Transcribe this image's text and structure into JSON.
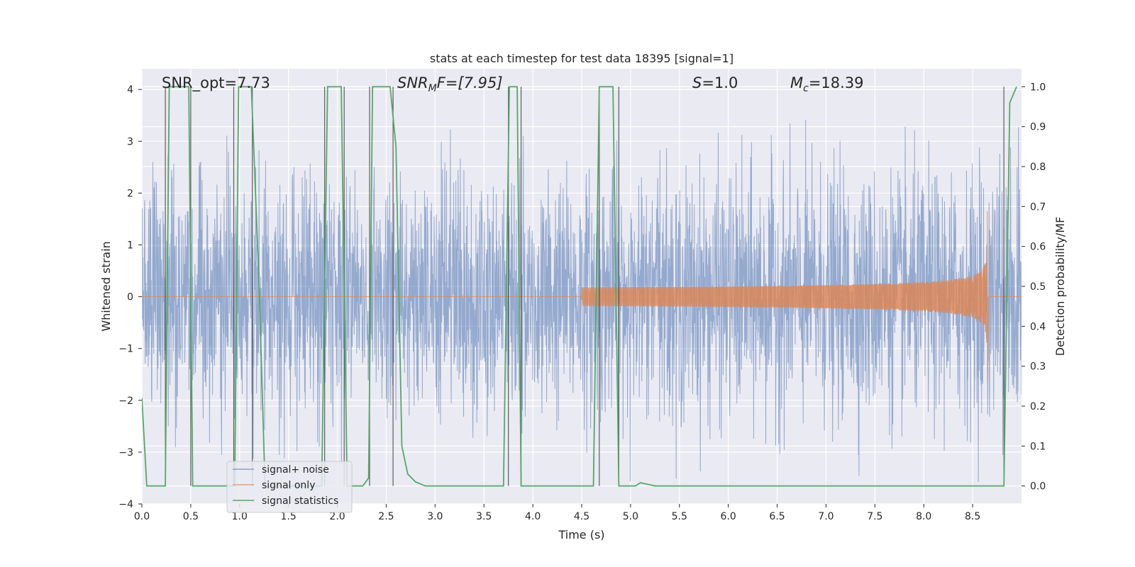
{
  "chart_data": {
    "type": "line",
    "title": "stats at each timestep for test data 18395 [signal=1]",
    "xlabel": "Time (s)",
    "ylabel": "Whitened strain",
    "y2label": "Detection probability/MF",
    "xlim": [
      0,
      9.0
    ],
    "ylim": [
      -4,
      4.4
    ],
    "y2lim": [
      -0.045,
      1.045
    ],
    "x_ticks": [
      "0.0",
      "0.5",
      "1.0",
      "1.5",
      "2.0",
      "2.5",
      "3.0",
      "3.5",
      "4.0",
      "4.5",
      "5.0",
      "5.5",
      "6.0",
      "6.5",
      "7.0",
      "7.5",
      "8.0",
      "8.5"
    ],
    "y_ticks": [
      "4",
      "3",
      "2",
      "1",
      "0",
      "−1",
      "−2",
      "−3",
      "−4"
    ],
    "y2_ticks": [
      "1.0",
      "0.9",
      "0.8",
      "0.7",
      "0.6",
      "0.5",
      "0.4",
      "0.3",
      "0.2",
      "0.1",
      "0.0"
    ],
    "annotations": {
      "snr_opt": "SNR_opt=7.73",
      "snr_mf_base": "SNR",
      "snr_mf_sub": "M",
      "snr_mf_rest": "F=[7.95]",
      "s_italic": "S",
      "s_rest": "=1.0",
      "mc_base": "M",
      "mc_sub": "c",
      "mc_rest": "=18.39"
    },
    "legend": {
      "position": "lower-left",
      "entries": [
        "signal+ noise",
        "signal only",
        "signal statistics"
      ]
    },
    "series": [
      {
        "name": "signal+ noise",
        "color": "#4c72b0",
        "kind": "noise",
        "typical_range": [
          -2.2,
          2.2
        ],
        "extreme_range": [
          -3.6,
          3.6
        ]
      },
      {
        "name": "signal only",
        "color": "#dd8452",
        "kind": "chirp",
        "start_time": 4.5,
        "merger_time": 8.65,
        "peak_amplitude": 1.65
      },
      {
        "name": "signal statistics",
        "color": "#55a868",
        "axis": "right",
        "points": [
          [
            0.0,
            0.22
          ],
          [
            0.05,
            0.0
          ],
          [
            0.24,
            0.0
          ],
          [
            0.28,
            1.0
          ],
          [
            0.48,
            1.0
          ],
          [
            0.52,
            0.0
          ],
          [
            0.95,
            0.0
          ],
          [
            0.99,
            1.0
          ],
          [
            1.12,
            1.0
          ],
          [
            1.2,
            0.5
          ],
          [
            1.26,
            0.0
          ],
          [
            1.84,
            0.0
          ],
          [
            1.9,
            1.0
          ],
          [
            2.04,
            1.0
          ],
          [
            2.1,
            0.0
          ],
          [
            2.26,
            0.0
          ],
          [
            2.32,
            0.02
          ],
          [
            2.36,
            1.0
          ],
          [
            2.54,
            1.0
          ],
          [
            2.6,
            0.85
          ],
          [
            2.66,
            0.1
          ],
          [
            2.72,
            0.03
          ],
          [
            2.8,
            0.01
          ],
          [
            2.9,
            0.0
          ],
          [
            3.7,
            0.0
          ],
          [
            3.76,
            1.0
          ],
          [
            3.84,
            1.0
          ],
          [
            3.88,
            0.0
          ],
          [
            4.62,
            0.0
          ],
          [
            4.68,
            1.0
          ],
          [
            4.82,
            1.0
          ],
          [
            4.88,
            0.0
          ],
          [
            5.05,
            0.0
          ],
          [
            5.1,
            0.008
          ],
          [
            5.25,
            0.0
          ],
          [
            8.82,
            0.0
          ],
          [
            8.88,
            0.96
          ],
          [
            8.95,
            1.0
          ]
        ]
      }
    ],
    "detection_marks": [
      0.24,
      0.5,
      0.94,
      1.13,
      1.87,
      2.07,
      2.33,
      2.57,
      3.75,
      3.88,
      4.68,
      4.88,
      8.82
    ]
  }
}
